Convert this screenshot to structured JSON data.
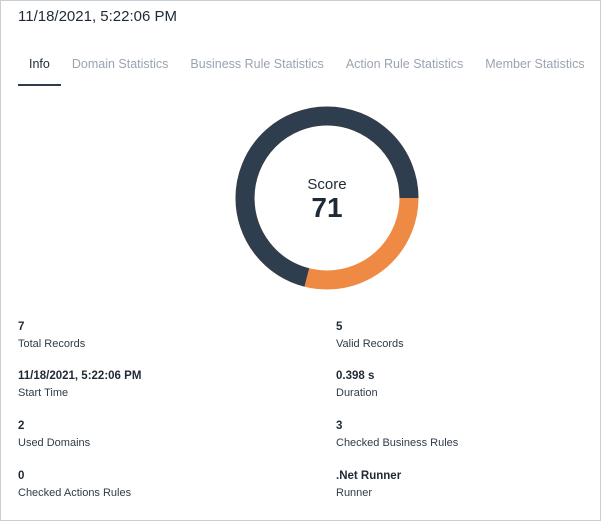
{
  "header": {
    "title": "11/18/2021, 5:22:06 PM"
  },
  "tabs": [
    {
      "label": "Info",
      "active": true
    },
    {
      "label": "Domain Statistics",
      "active": false
    },
    {
      "label": "Business Rule Statistics",
      "active": false
    },
    {
      "label": "Action Rule Statistics",
      "active": false
    },
    {
      "label": "Member Statistics",
      "active": false
    }
  ],
  "score": {
    "label": "Score",
    "value": 71,
    "colors": {
      "filled": "#2f3e4f",
      "remaining": "#ef8a45"
    }
  },
  "stats": {
    "total_records": {
      "value": "7",
      "label": "Total Records"
    },
    "valid_records": {
      "value": "5",
      "label": "Valid Records"
    },
    "start_time": {
      "value": "11/18/2021, 5:22:06 PM",
      "label": "Start Time"
    },
    "duration": {
      "value": "0.398 s",
      "label": "Duration"
    },
    "used_domains": {
      "value": "2",
      "label": "Used Domains"
    },
    "checked_business_rules": {
      "value": "3",
      "label": "Checked Business Rules"
    },
    "checked_actions_rules": {
      "value": "0",
      "label": "Checked Actions Rules"
    },
    "runner": {
      "value": ".Net Runner",
      "label": "Runner"
    }
  }
}
